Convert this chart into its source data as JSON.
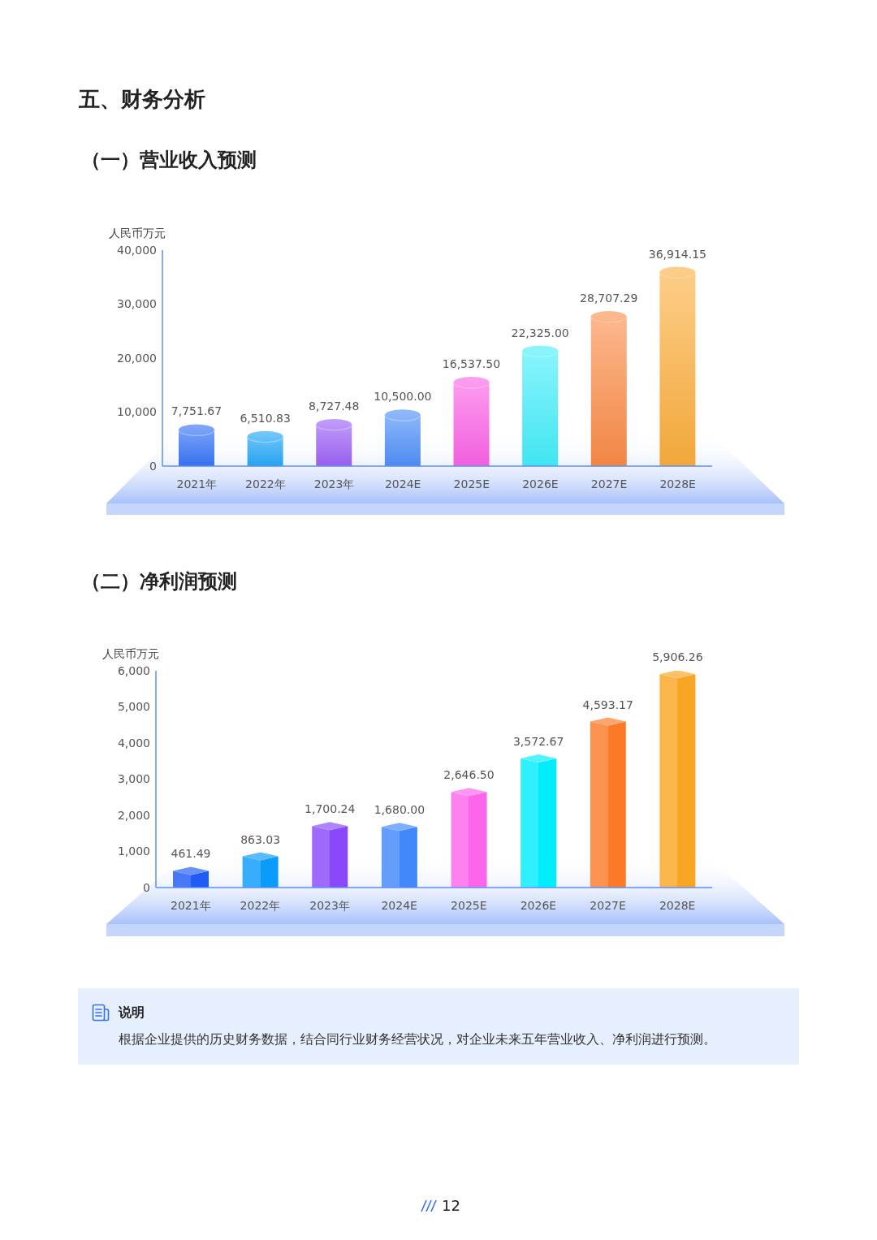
{
  "chart_data": [
    {
      "type": "bar",
      "title": "五、财务分析",
      "subtitle": "（一）营业收入预测",
      "ylabel": "人民币万元",
      "categories": [
        "2021年",
        "2022年",
        "2023年",
        "2024E",
        "2025E",
        "2026E",
        "2027E",
        "2028E"
      ],
      "values": [
        7751.67,
        6510.83,
        8727.48,
        10500,
        16537.5,
        22325,
        28707.29,
        36914.15
      ],
      "value_labels": [
        "7,751.67",
        "6,510.83",
        "8,727.48",
        "10,500.00",
        "16,537.50",
        "22,325.00",
        "28,707.29",
        "36,914.15"
      ],
      "colors": [
        "#2f6ef7",
        "#1aa4f7",
        "#9a5cf6",
        "#4a8cf8",
        "#fb5fe6",
        "#40eefb",
        "#fb8a45",
        "#fbad3a"
      ],
      "ylim": [
        0,
        40000
      ],
      "yticks": [
        0,
        {
          "value": 10000,
          "label": "10,000"
        },
        {
          "value": 20000,
          "label": "20,000"
        },
        {
          "value": 30000,
          "label": "30,000"
        },
        {
          "value": 40000,
          "label": "40,000"
        }
      ]
    },
    {
      "type": "bar",
      "title": "（二）净利润预测",
      "ylabel": "人民币万元",
      "categories": [
        "2021年",
        "2022年",
        "2023年",
        "2024E",
        "2025E",
        "2026E",
        "2027E",
        "2028E"
      ],
      "values": [
        461.49,
        863.03,
        1700.24,
        1680,
        2646.5,
        3572.67,
        4593.17,
        5906.26
      ],
      "value_labels": [
        "461.49",
        "863.03",
        "1,700.24",
        "1,680.00",
        "2,646.50",
        "3,572.67",
        "4,593.17",
        "5,906.26"
      ],
      "colors": [
        "#1f5cf5",
        "#0b9bfb",
        "#8a48fb",
        "#4288fb",
        "#fd66ec",
        "#00eefc",
        "#fb7a28",
        "#f9a524"
      ],
      "ylim": [
        0,
        6000
      ],
      "yticks": [
        0,
        {
          "value": 1000,
          "label": "1,000"
        },
        {
          "value": 2000,
          "label": "2,000"
        },
        {
          "value": 3000,
          "label": "3,000"
        },
        {
          "value": 4000,
          "label": "4,000"
        },
        {
          "value": 5000,
          "label": "5,000"
        },
        {
          "value": 6000,
          "label": "6,000"
        }
      ],
      "annotations": [
        "说明",
        "根据企业提供的历史财务数据，结合同行业财务经营状况，对企业未来五年营业收入、净利润进行预测。",
        "12"
      ]
    }
  ]
}
